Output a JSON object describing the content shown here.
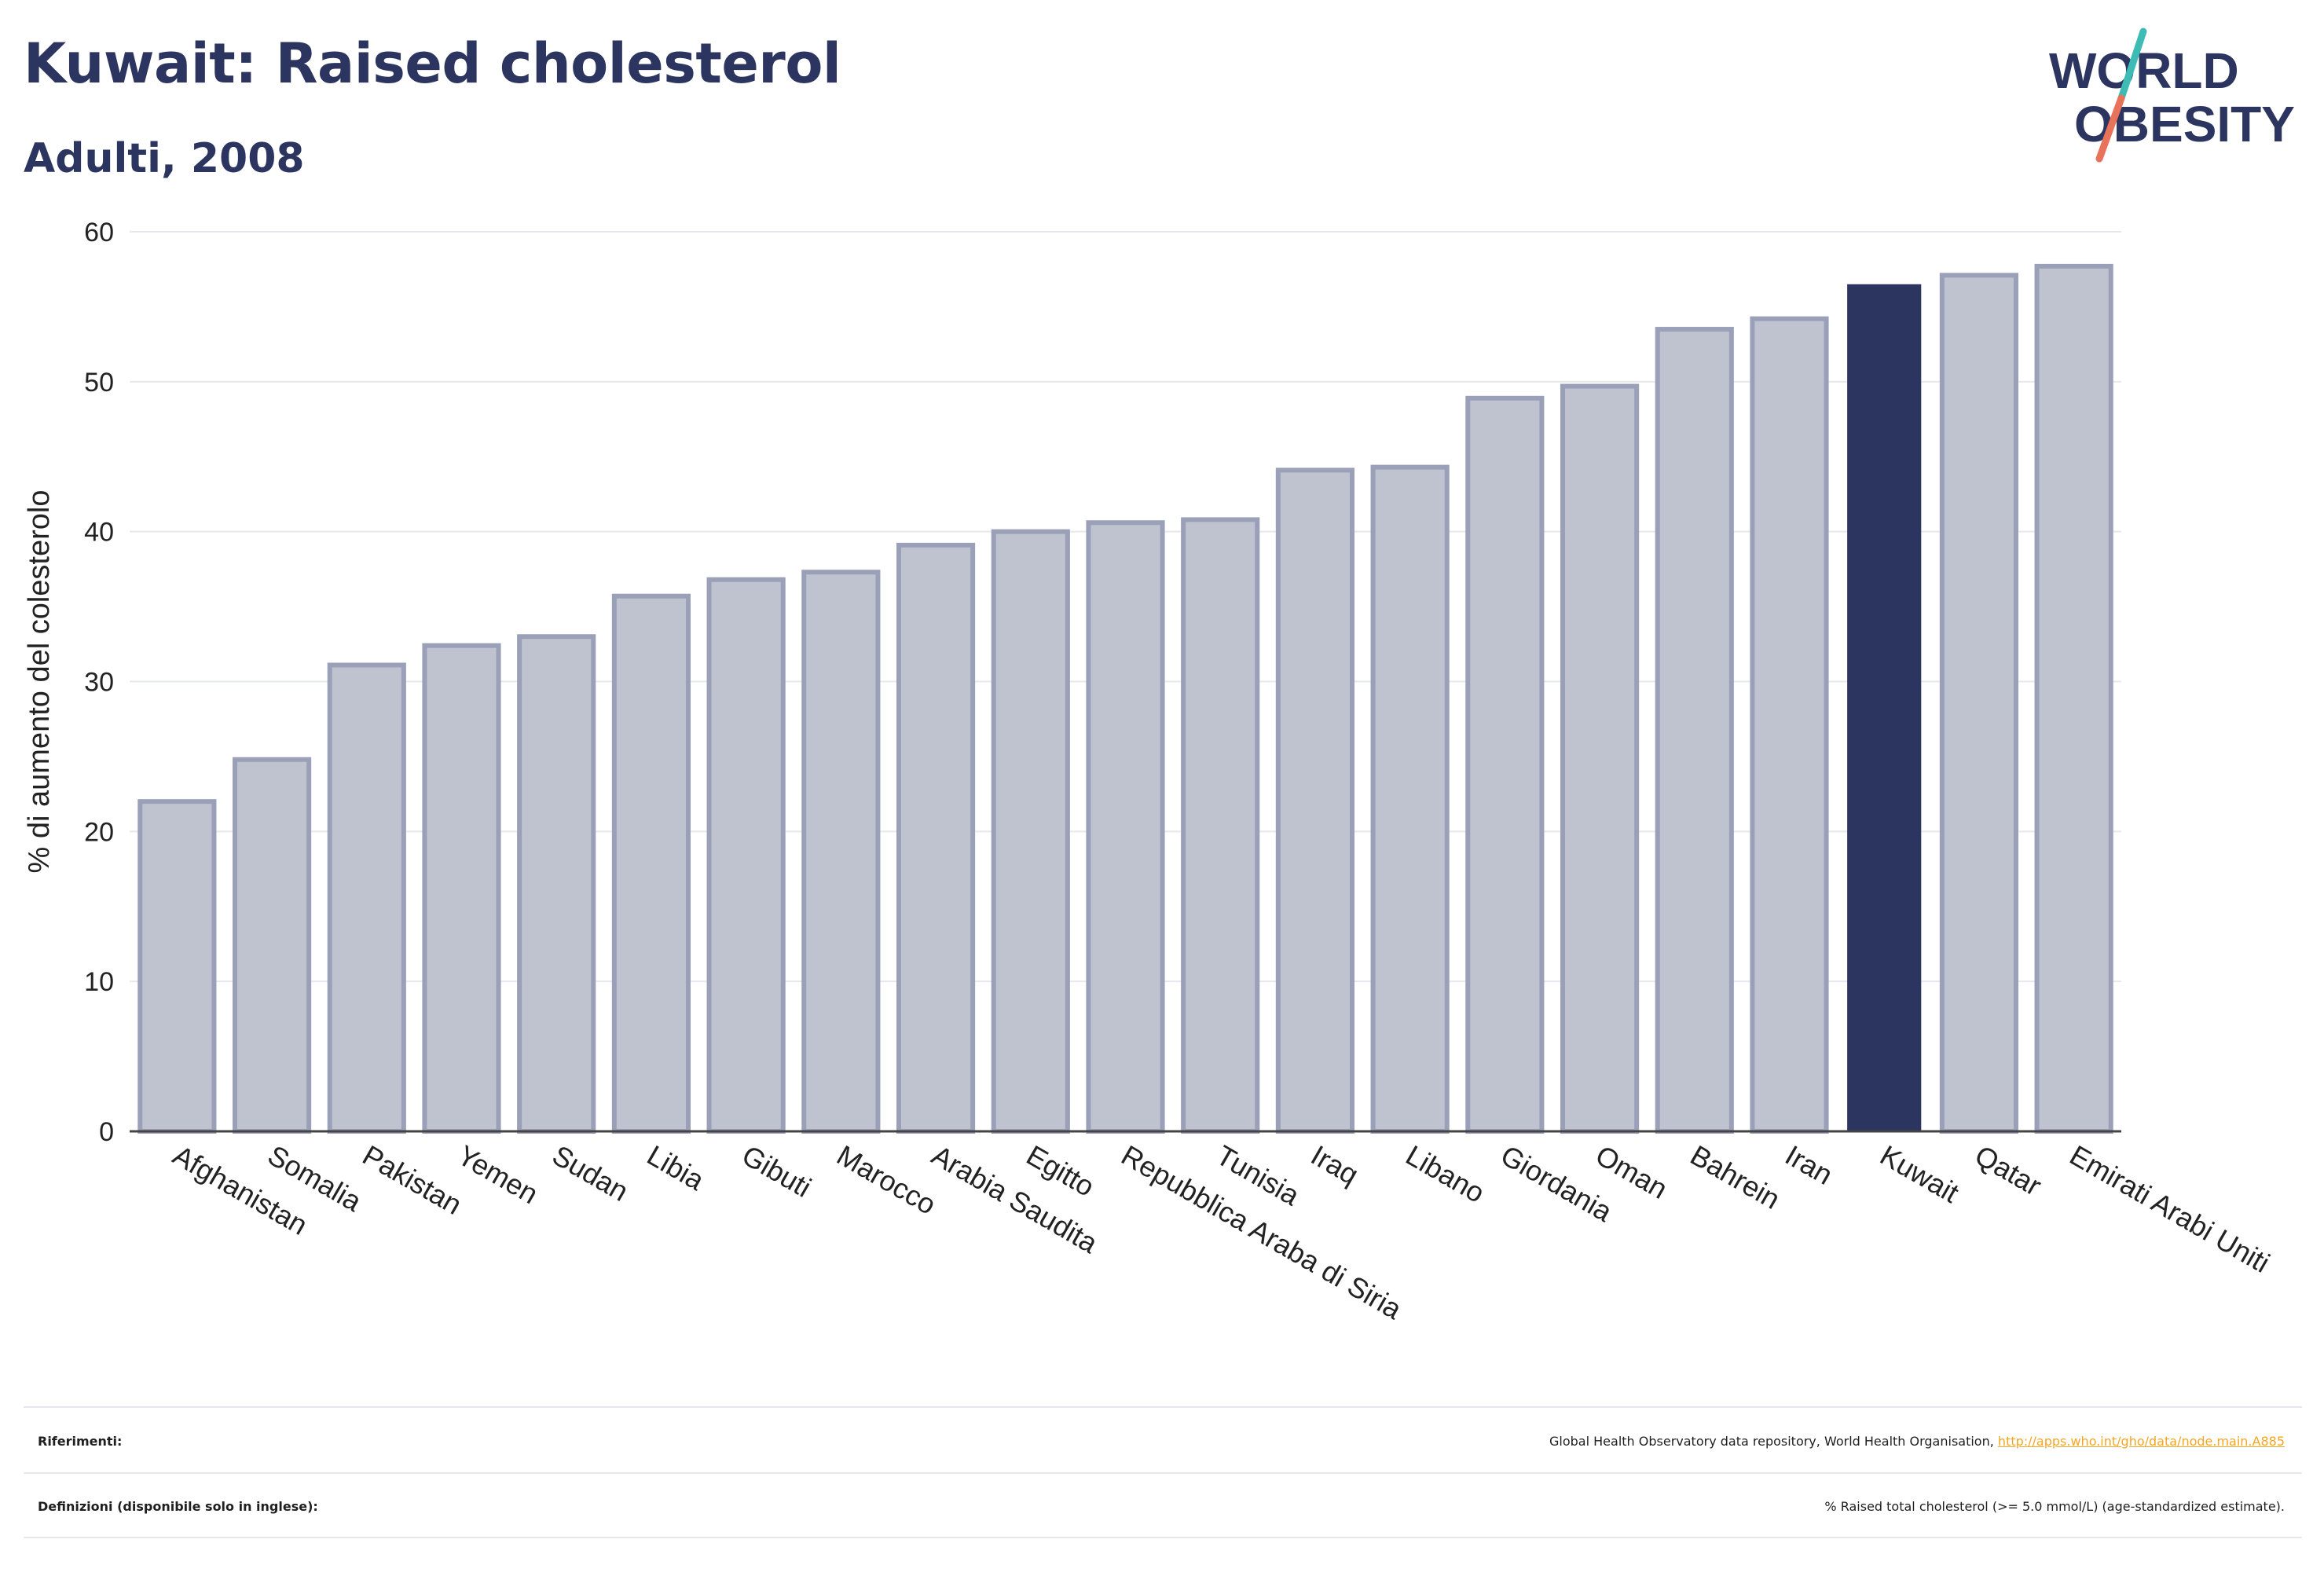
{
  "header": {
    "title": "Kuwait: Raised cholesterol",
    "subtitle": "Adulti, 2008"
  },
  "logo": {
    "line1": "WORLD",
    "line2": "OBESITY",
    "colors": {
      "text": "#2c3560",
      "slash_top": "#3cbcb4",
      "slash_bottom": "#e8735a"
    }
  },
  "chart_data": {
    "type": "bar",
    "categories": [
      "Afghanistan",
      "Somalia",
      "Pakistan",
      "Yemen",
      "Sudan",
      "Libia",
      "Gibuti",
      "Marocco",
      "Arabia Saudita",
      "Egitto",
      "Repubblica Araba di Siria",
      "Tunisia",
      "Iraq",
      "Libano",
      "Giordania",
      "Oman",
      "Bahrein",
      "Iran",
      "Kuwait",
      "Qatar",
      "Emirati Arabi Uniti"
    ],
    "values": [
      22.0,
      24.8,
      31.1,
      32.4,
      33.0,
      35.7,
      36.8,
      37.3,
      39.1,
      40.0,
      40.6,
      40.8,
      44.1,
      44.3,
      48.9,
      49.7,
      53.5,
      54.2,
      56.5,
      57.1,
      57.7
    ],
    "highlight": "Kuwait",
    "ylabel": "% di aumento del colesterolo",
    "xlabel": "",
    "ylim": [
      0,
      60
    ],
    "yticks": [
      0,
      10,
      20,
      30,
      40,
      50,
      60
    ],
    "grid": true,
    "colors": {
      "bar": "#bfc3cf",
      "bar_border": "#9aa0b8",
      "highlight": "#2c3560",
      "grid": "#e6e8ee",
      "axis": "#444444"
    }
  },
  "footer": {
    "references_label": "Riferimenti:",
    "references_text": "Global Health Observatory data repository, World Health Organisation, ",
    "references_link": "http://apps.who.int/gho/data/node.main.A885",
    "definitions_label": "Definizioni (disponibile solo in inglese):",
    "definitions_text": "% Raised total cholesterol (>= 5.0 mmol/L) (age-standardized estimate)."
  }
}
